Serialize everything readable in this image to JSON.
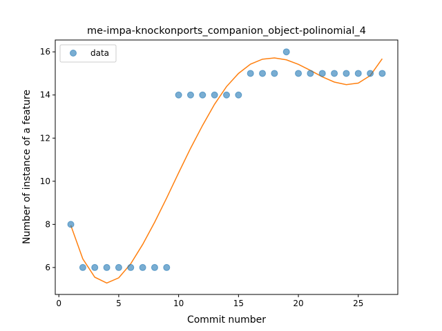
{
  "chart_data": {
    "type": "scatter",
    "title": "me-impa-knockonports_companion_object-polinomial_4",
    "xlabel": "Commit number",
    "ylabel": "Number of instance of a feature",
    "xlim": [
      -0.3,
      28.3
    ],
    "ylim": [
      4.75,
      16.55
    ],
    "xticks": [
      0,
      5,
      10,
      15,
      20,
      25
    ],
    "yticks": [
      6,
      8,
      10,
      12,
      14,
      16
    ],
    "grid": false,
    "legend": {
      "position": "top-left",
      "entries": [
        "data"
      ]
    },
    "colors": {
      "scatter": "#1f77b4",
      "fit": "#ff7f0e"
    },
    "series": [
      {
        "name": "data",
        "style": "markers",
        "x": [
          1,
          2,
          3,
          4,
          5,
          6,
          7,
          8,
          9,
          10,
          11,
          12,
          13,
          14,
          15,
          16,
          17,
          18,
          19,
          20,
          21,
          22,
          23,
          24,
          25,
          26,
          27
        ],
        "y": [
          8,
          6,
          6,
          6,
          6,
          6,
          6,
          6,
          6,
          14,
          14,
          14,
          14,
          14,
          14,
          15,
          15,
          15,
          16,
          15,
          15,
          15,
          15,
          15,
          15,
          15,
          15
        ]
      },
      {
        "style": "line",
        "x": [
          1,
          2,
          3,
          4,
          5,
          6,
          7,
          8,
          9,
          10,
          11,
          12,
          13,
          14,
          15,
          16,
          17,
          18,
          19,
          20,
          21,
          22,
          23,
          24,
          25,
          26,
          27
        ],
        "y": [
          7.95,
          6.4,
          5.55,
          5.28,
          5.52,
          6.17,
          7.07,
          8.1,
          9.22,
          10.39,
          11.53,
          12.59,
          13.57,
          14.39,
          15.0,
          15.43,
          15.66,
          15.72,
          15.63,
          15.42,
          15.14,
          14.84,
          14.6,
          14.48,
          14.55,
          14.9,
          15.68
        ]
      }
    ]
  }
}
